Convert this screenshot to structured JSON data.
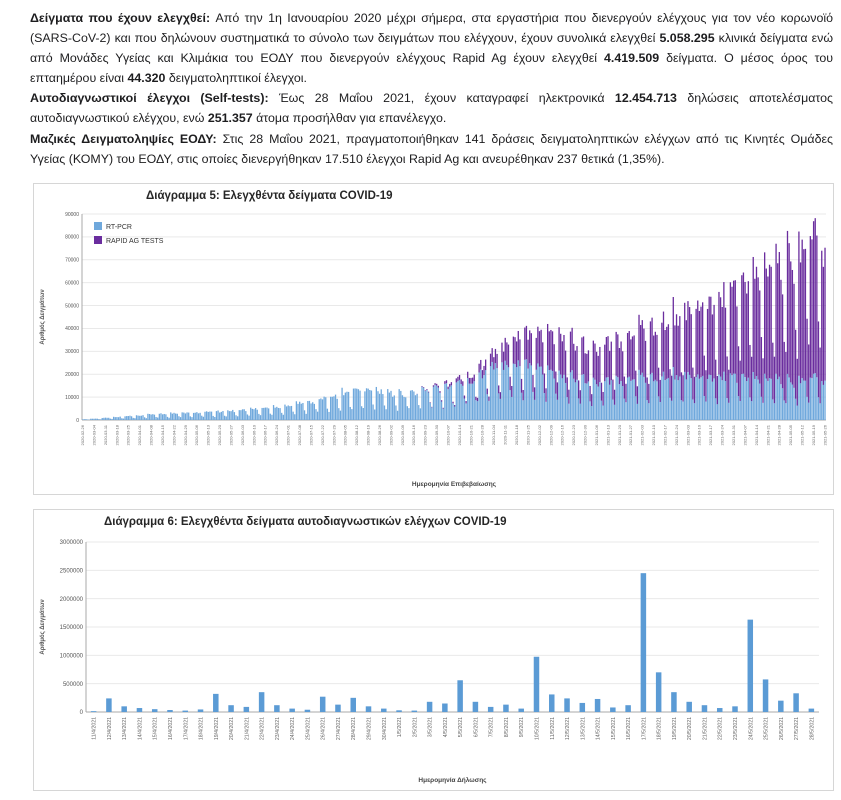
{
  "report": {
    "paragraphs": [
      {
        "segments": [
          {
            "t": "Δείγματα που έχουν ελεγχθεί: ",
            "b": true
          },
          {
            "t": "Από την 1η Ιανουαρίου 2020 μέχρι σήμερα, στα εργαστήρια που διενεργούν ελέγχους για τον νέο κορωνοϊό (SARS-CoV-2) και που δηλώνουν συστηματικά το σύνολο των δειγμάτων που ελέγχουν, έχουν συνολικά ελεγχθεί ",
            "b": false
          },
          {
            "t": "5.058.295",
            "b": true
          },
          {
            "t": " κλινικά δείγματα ενώ από Μονάδες Υγείας και Κλιμάκια του ΕΟΔΥ που διενεργούν ελέγχους Rapid Ag έχουν ελεγχθεί ",
            "b": false
          },
          {
            "t": "4.419.509",
            "b": true
          },
          {
            "t": " δείγματα. Ο μέσος όρος του επταημέρου είναι ",
            "b": false
          },
          {
            "t": "44.320",
            "b": true
          },
          {
            "t": " δειγματοληπτικοί έλεγχοι.",
            "b": false
          }
        ]
      },
      {
        "segments": [
          {
            "t": "Αυτοδιαγνωστικοί έλεγχοι (Self-tests): ",
            "b": true
          },
          {
            "t": "Έως 28 Μαΐου 2021, έχουν καταγραφεί ηλεκτρονικά ",
            "b": false
          },
          {
            "t": "12.454.713",
            "b": true
          },
          {
            "t": " δηλώσεις αποτελέσματος αυτοδιαγνωστικού ελέγχου, ενώ ",
            "b": false
          },
          {
            "t": "251.357",
            "b": true
          },
          {
            "t": " άτομα προσήλθαν για επανέλεγχο.",
            "b": false
          }
        ]
      },
      {
        "segments": [
          {
            "t": "Μαζικές Δειγματοληψίες ΕΟΔΥ: ",
            "b": true
          },
          {
            "t": "Στις 28 Μαΐου 2021, πραγματοποιήθηκαν 141 δράσεις δειγματοληπτικών ελέγχων από τις Κινητές Ομάδες Υγείας (ΚΟΜΥ) του ΕΟΔΥ, στις οποίες διενεργήθηκαν 17.510 έλεγχοι Rapid Ag και ανευρέθηκαν 237 θετικά (1,35%).",
            "b": false
          }
        ]
      }
    ]
  },
  "chart_data": [
    {
      "type": "bar",
      "stacked": true,
      "title": "Διάγραμμα 5: Ελεγχθέντα δείγματα COVID-19",
      "ylabel": "Αριθμός Δειγμάτων",
      "xlabel": "Ημερομηνία Επιβεβαίωσης",
      "ylim": [
        0,
        90000
      ],
      "ytick_step": 10000,
      "grid": true,
      "legend_position": "top-left",
      "legend": [
        {
          "name": "RT-PCR",
          "color": "#6fa8dc"
        },
        {
          "name": "RAPID AG TESTS",
          "color": "#6a2d9e"
        }
      ],
      "date_range": {
        "start": "2020-02-26",
        "end": "2021-05-26"
      },
      "xtick_every_days": 7,
      "weekday_factors_sun_to_sat": [
        0.38,
        1.05,
        1.0,
        0.97,
        0.95,
        0.9,
        0.5
      ],
      "noise": 0.12,
      "series_keyframes": {
        "rt_pcr": [
          [
            "2020-02-26",
            300
          ],
          [
            "2020-03-10",
            900
          ],
          [
            "2020-03-25",
            1800
          ],
          [
            "2020-04-10",
            2600
          ],
          [
            "2020-04-30",
            3200
          ],
          [
            "2020-05-20",
            3800
          ],
          [
            "2020-06-10",
            5000
          ],
          [
            "2020-06-30",
            6500
          ],
          [
            "2020-07-20",
            9000
          ],
          [
            "2020-08-05",
            12500
          ],
          [
            "2020-08-20",
            13500
          ],
          [
            "2020-09-05",
            11500
          ],
          [
            "2020-09-20",
            13000
          ],
          [
            "2020-10-05",
            15000
          ],
          [
            "2020-10-20",
            18000
          ],
          [
            "2020-11-05",
            24000
          ],
          [
            "2020-11-20",
            26000
          ],
          [
            "2020-12-05",
            22000
          ],
          [
            "2020-12-20",
            20000
          ],
          [
            "2021-01-05",
            16500
          ],
          [
            "2021-01-20",
            18000
          ],
          [
            "2021-02-05",
            19500
          ],
          [
            "2021-02-20",
            20000
          ],
          [
            "2021-03-10",
            19000
          ],
          [
            "2021-03-25",
            20000
          ],
          [
            "2021-04-10",
            19500
          ],
          [
            "2021-04-25",
            18000
          ],
          [
            "2021-05-05",
            17000
          ],
          [
            "2021-05-15",
            18500
          ],
          [
            "2021-05-19",
            20000
          ],
          [
            "2021-05-26",
            16000
          ]
        ],
        "rapid_ag": [
          [
            "2020-02-26",
            0
          ],
          [
            "2020-09-15",
            0
          ],
          [
            "2020-09-25",
            400
          ],
          [
            "2020-10-10",
            1500
          ],
          [
            "2020-10-25",
            3500
          ],
          [
            "2020-11-05",
            6000
          ],
          [
            "2020-11-15",
            12000
          ],
          [
            "2020-12-01",
            15000
          ],
          [
            "2020-12-15",
            18500
          ],
          [
            "2021-01-01",
            14000
          ],
          [
            "2021-01-15",
            17000
          ],
          [
            "2021-02-01",
            21000
          ],
          [
            "2021-02-15",
            24500
          ],
          [
            "2021-03-01",
            28000
          ],
          [
            "2021-03-15",
            33000
          ],
          [
            "2021-04-01",
            40000
          ],
          [
            "2021-04-15",
            48000
          ],
          [
            "2021-04-25",
            50000
          ],
          [
            "2021-05-01",
            52000
          ],
          [
            "2021-05-10",
            58000
          ],
          [
            "2021-05-19",
            66000
          ],
          [
            "2021-05-26",
            54000
          ]
        ]
      }
    },
    {
      "type": "bar",
      "title": "Διάγραμμα 6: Ελεγχθέντα δείγματα αυτοδιαγνωστικών ελέγχων COVID-19",
      "ylabel": "Αριθμός Δειγμάτων",
      "xlabel": "Ημερομηνία Δήλωσης",
      "ylim": [
        0,
        3000000
      ],
      "ytick_step": 500000,
      "grid": true,
      "bar_color": "#5b9bd5",
      "categories": [
        "11/4/2021",
        "12/4/2021",
        "13/4/2021",
        "14/4/2021",
        "15/4/2021",
        "16/4/2021",
        "17/4/2021",
        "18/4/2021",
        "19/4/2021",
        "20/4/2021",
        "21/4/2021",
        "22/4/2021",
        "23/4/2021",
        "24/4/2021",
        "25/4/2021",
        "26/4/2021",
        "27/4/2021",
        "28/4/2021",
        "29/4/2021",
        "30/4/2021",
        "1/5/2021",
        "2/5/2021",
        "3/5/2021",
        "4/5/2021",
        "5/5/2021",
        "6/5/2021",
        "7/5/2021",
        "8/5/2021",
        "9/5/2021",
        "10/5/2021",
        "11/5/2021",
        "12/5/2021",
        "13/5/2021",
        "14/5/2021",
        "15/5/2021",
        "16/5/2021",
        "17/5/2021",
        "18/5/2021",
        "19/5/2021",
        "20/5/2021",
        "21/5/2021",
        "22/5/2021",
        "23/5/2021",
        "24/5/2021",
        "25/5/2021",
        "26/5/2021",
        "27/5/2021",
        "28/5/2021"
      ],
      "values": [
        15000,
        240000,
        100000,
        70000,
        50000,
        35000,
        25000,
        45000,
        320000,
        120000,
        90000,
        350000,
        120000,
        60000,
        40000,
        270000,
        130000,
        250000,
        100000,
        60000,
        30000,
        25000,
        180000,
        150000,
        560000,
        180000,
        90000,
        130000,
        60000,
        975000,
        310000,
        240000,
        160000,
        230000,
        80000,
        120000,
        2450000,
        700000,
        350000,
        180000,
        120000,
        70000,
        100000,
        1630000,
        575000,
        200000,
        330000,
        60000
      ]
    }
  ],
  "colors": {
    "rt_pcr": "#6fa8dc",
    "rapid_ag": "#6a2d9e",
    "self_test_bar": "#5b9bd5",
    "grid_line": "#e9e9e9",
    "axis_line": "#a8a8a8",
    "panel_border": "#d6d6d6"
  }
}
